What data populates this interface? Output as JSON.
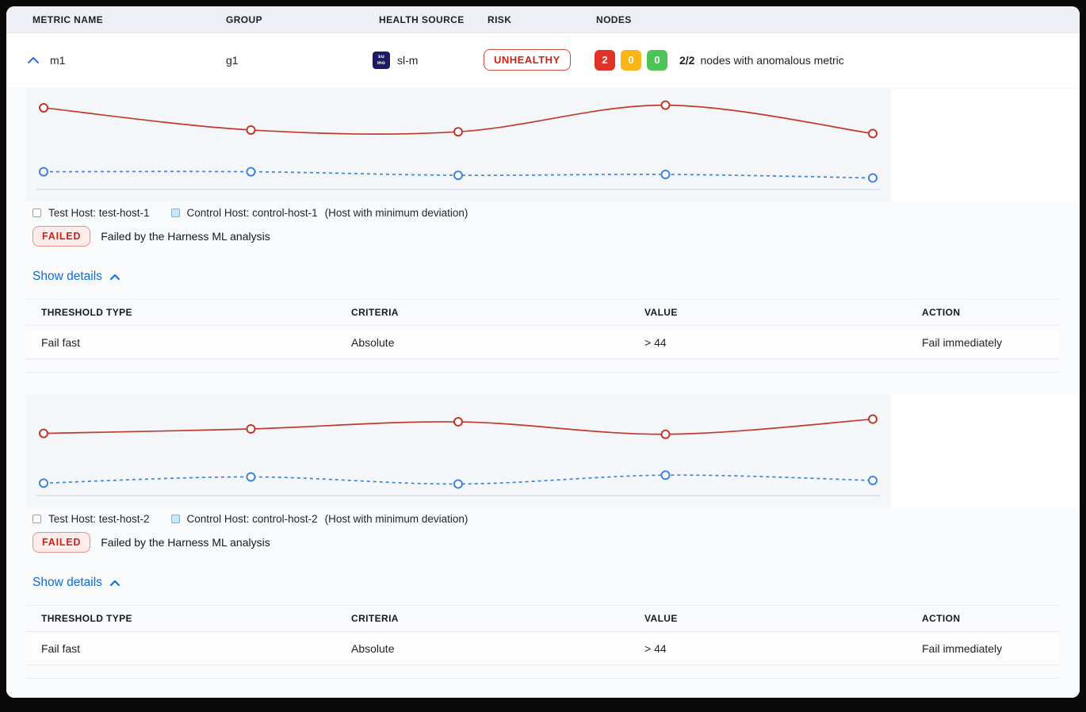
{
  "header": {
    "columns": [
      "METRIC NAME",
      "GROUP",
      "HEALTH SOURCE",
      "RISK",
      "NODES"
    ]
  },
  "metric_row": {
    "metric_name": "m1",
    "group": "g1",
    "health_source": {
      "icon_line1": "su",
      "icon_line2": "mo",
      "name": "sl-m"
    },
    "risk_label": "UNHEALTHY",
    "nodes": {
      "anomalous_count": "2",
      "warning_count": "0",
      "healthy_count": "0",
      "summary_bold": "2/2",
      "summary_text": "nodes with anomalous metric"
    }
  },
  "sections": [
    {
      "legend": {
        "test_label": "Test Host: test-host-1",
        "control_label": "Control Host: control-host-1",
        "control_note": "(Host with minimum deviation)"
      },
      "status": {
        "badge": "FAILED",
        "message": "Failed by the Harness ML analysis"
      },
      "details_link": "Show details",
      "table": {
        "headers": [
          "THRESHOLD TYPE",
          "CRITERIA",
          "VALUE",
          "ACTION"
        ],
        "rows": [
          [
            "Fail fast",
            "Absolute",
            "> 44",
            "Fail immediately"
          ]
        ]
      }
    },
    {
      "legend": {
        "test_label": "Test Host: test-host-2",
        "control_label": "Control Host: control-host-2",
        "control_note": "(Host with minimum deviation)"
      },
      "status": {
        "badge": "FAILED",
        "message": "Failed by the Harness ML analysis"
      },
      "details_link": "Show details",
      "table": {
        "headers": [
          "THRESHOLD TYPE",
          "CRITERIA",
          "VALUE",
          "ACTION"
        ],
        "rows": [
          [
            "Fail fast",
            "Absolute",
            "> 44",
            "Fail immediately"
          ]
        ]
      }
    }
  ],
  "colors": {
    "risk_red": "#cf2318",
    "node_red": "#e03226",
    "node_yellow": "#fcb519",
    "node_green": "#4ec457",
    "test_line": "#c0392b",
    "control_line": "#3d85db",
    "link_blue": "#0b6cdc",
    "axis_line": "#ccd3e6"
  },
  "chart_data": [
    {
      "type": "line",
      "x": [
        1,
        2,
        3,
        4,
        5
      ],
      "series": [
        {
          "name": "Test Host: test-host-1",
          "color": "#c0392b",
          "style": "solid",
          "values": [
            92,
            67,
            65,
            95,
            63
          ]
        },
        {
          "name": "Control Host: control-host-1",
          "color": "#3d85db",
          "style": "dashed",
          "values": [
            20,
            20,
            16,
            17,
            13
          ]
        }
      ],
      "ylim": [
        0,
        100
      ],
      "grid": false,
      "axis_labels_visible": false,
      "marker": "open-circle"
    },
    {
      "type": "line",
      "x": [
        1,
        2,
        3,
        4,
        5
      ],
      "series": [
        {
          "name": "Test Host: test-host-2",
          "color": "#c0392b",
          "style": "solid",
          "values": [
            70,
            75,
            83,
            69,
            86
          ]
        },
        {
          "name": "Control Host: control-host-2",
          "color": "#3d85db",
          "style": "dashed",
          "values": [
            14,
            21,
            13,
            23,
            17
          ]
        }
      ],
      "ylim": [
        0,
        100
      ],
      "grid": false,
      "axis_labels_visible": false,
      "marker": "open-circle"
    }
  ]
}
